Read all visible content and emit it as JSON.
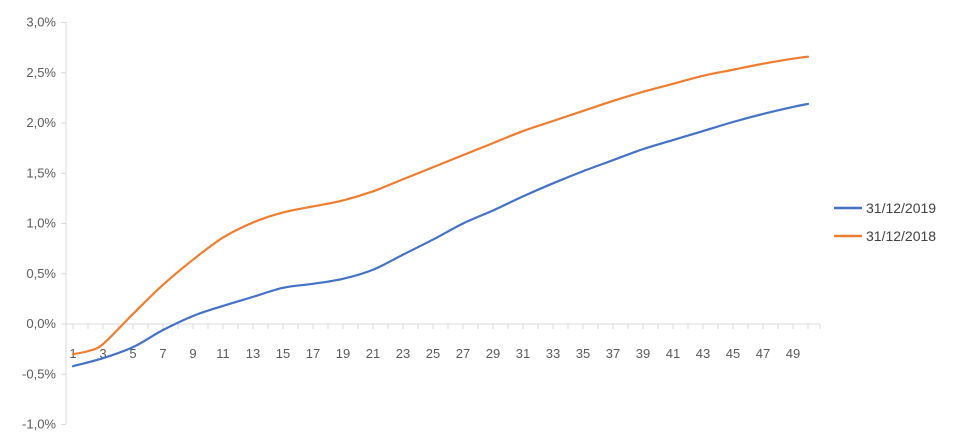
{
  "chart_data": {
    "type": "line",
    "title": "",
    "xlabel": "",
    "ylabel": "",
    "x_range": [
      1,
      50
    ],
    "ylim": [
      -1.0,
      3.0
    ],
    "y_ticks": [
      -1.0,
      -0.5,
      0.0,
      0.5,
      1.0,
      1.5,
      2.0,
      2.5,
      3.0
    ],
    "y_tick_labels": [
      "-1,0%",
      "-0,5%",
      "0,0%",
      "0,5%",
      "1,0%",
      "1,5%",
      "2,0%",
      "2,5%",
      "3,0%"
    ],
    "x_tick_labels": [
      "1",
      "3",
      "5",
      "7",
      "9",
      "11",
      "13",
      "15",
      "17",
      "19",
      "21",
      "23",
      "25",
      "27",
      "29",
      "31",
      "33",
      "35",
      "37",
      "39",
      "41",
      "43",
      "45",
      "47",
      "49"
    ],
    "grid": false,
    "legend_position": "right",
    "series": [
      {
        "name": "31/12/2019",
        "color": "#4472C4",
        "x": [
          1,
          3,
          5,
          7,
          9,
          11,
          13,
          15,
          17,
          19,
          21,
          23,
          25,
          27,
          29,
          31,
          33,
          35,
          37,
          39,
          41,
          43,
          45,
          47,
          49,
          50
        ],
        "values": [
          -0.42,
          -0.34,
          -0.23,
          -0.06,
          0.08,
          0.18,
          0.27,
          0.36,
          0.4,
          0.45,
          0.54,
          0.69,
          0.84,
          1.0,
          1.13,
          1.27,
          1.4,
          1.52,
          1.63,
          1.74,
          1.83,
          1.92,
          2.01,
          2.09,
          2.16,
          2.19
        ]
      },
      {
        "name": "31/12/2018",
        "color": "#ED7D31",
        "x": [
          1,
          2,
          3,
          5,
          7,
          9,
          11,
          13,
          15,
          17,
          19,
          21,
          23,
          25,
          27,
          29,
          31,
          33,
          35,
          37,
          39,
          41,
          43,
          45,
          47,
          49,
          50
        ],
        "values": [
          -0.3,
          -0.27,
          -0.2,
          0.1,
          0.39,
          0.64,
          0.86,
          1.01,
          1.11,
          1.17,
          1.23,
          1.32,
          1.44,
          1.56,
          1.68,
          1.8,
          1.92,
          2.02,
          2.12,
          2.22,
          2.31,
          2.39,
          2.47,
          2.53,
          2.59,
          2.64,
          2.66
        ]
      }
    ]
  }
}
